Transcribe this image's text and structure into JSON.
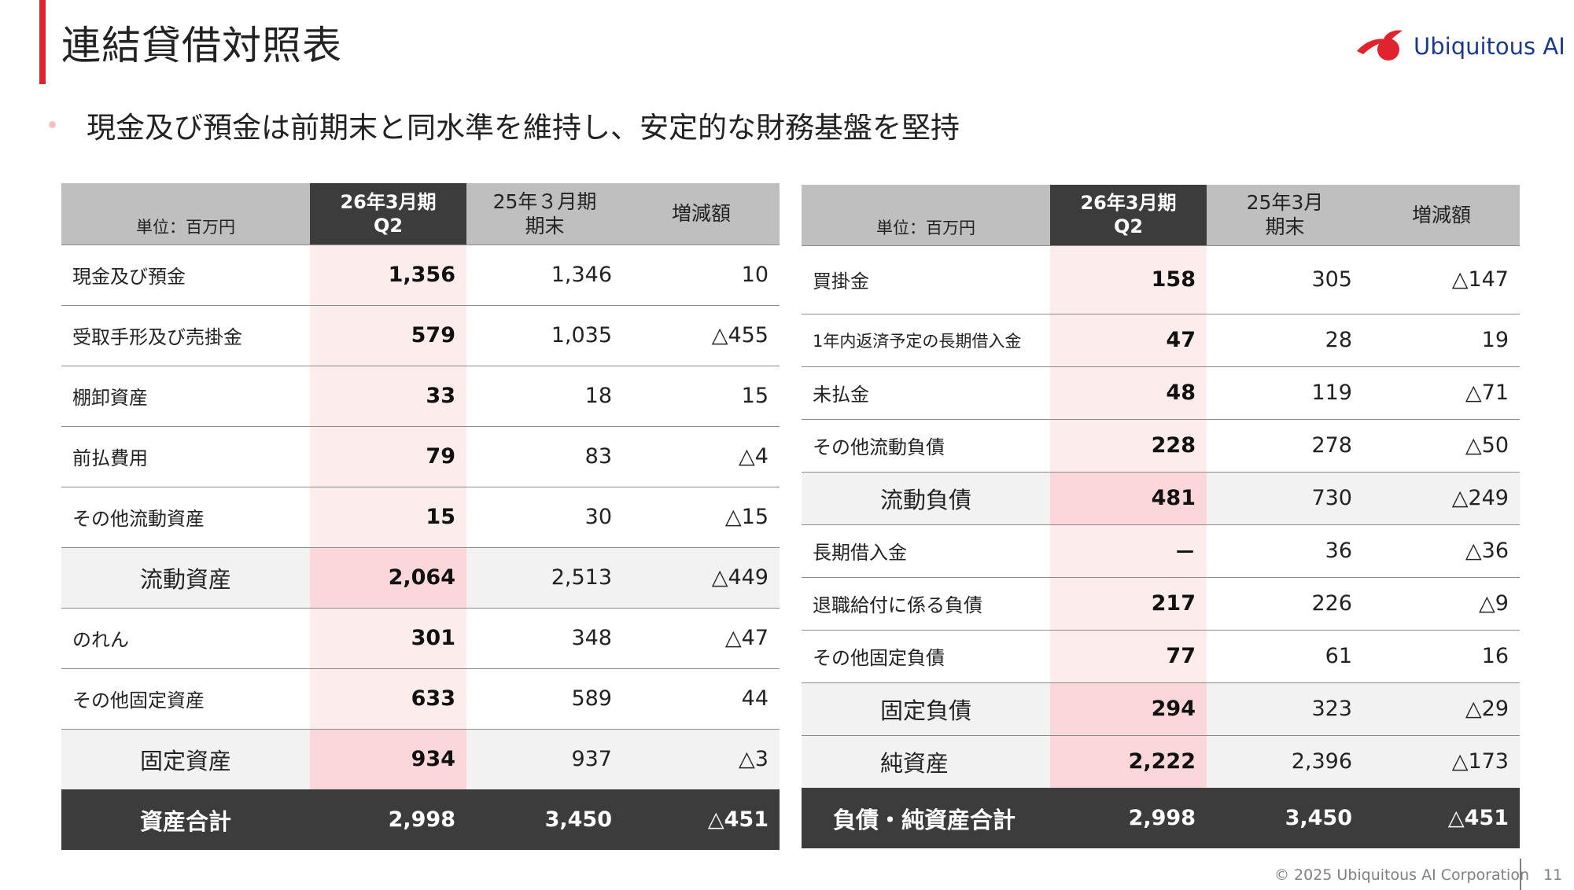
{
  "header": {
    "title": "連結貸借対照表",
    "logo_text": "Ubiquitous AI",
    "bullet": "現金及び預金は前期末と同水準を維持し、安定的な財務基盤を堅持"
  },
  "colors": {
    "accent": "#e0242f",
    "header_grey": "#bfbfbf",
    "dark": "#3c3c3c",
    "current_col": "#fcecec",
    "current_col_subtotal": "#fbd7da",
    "logo_blue": "#1b3a8f"
  },
  "assets_table": {
    "unit": "単位：百万円",
    "col_current": [
      "26年3月期",
      "Q2"
    ],
    "col_prev": [
      "25年３月期",
      "期末"
    ],
    "col_diff": "増減額",
    "rows": [
      {
        "label": "現金及び預金",
        "current": "1,356",
        "prev": "1,346",
        "diff": "10"
      },
      {
        "label": "受取手形及び売掛金",
        "current": "579",
        "prev": "1,035",
        "diff": "△455"
      },
      {
        "label": "棚卸資産",
        "current": "33",
        "prev": "18",
        "diff": "15"
      },
      {
        "label": "前払費用",
        "current": "79",
        "prev": "83",
        "diff": "△4"
      },
      {
        "label": "その他流動資産",
        "current": "15",
        "prev": "30",
        "diff": "△15"
      },
      {
        "label": "流動資産",
        "current": "2,064",
        "prev": "2,513",
        "diff": "△449"
      },
      {
        "label": "のれん",
        "current": "301",
        "prev": "348",
        "diff": "△47"
      },
      {
        "label": "その他固定資産",
        "current": "633",
        "prev": "589",
        "diff": "44"
      },
      {
        "label": "固定資産",
        "current": "934",
        "prev": "937",
        "diff": "△3"
      },
      {
        "label": "資産合計",
        "current": "2,998",
        "prev": "3,450",
        "diff": "△451"
      }
    ]
  },
  "liabilities_table": {
    "unit": "単位：百万円",
    "col_current": [
      "26年3月期",
      "Q2"
    ],
    "col_prev": [
      "25年3月",
      "期末"
    ],
    "col_diff": "増減額",
    "rows": [
      {
        "label": "買掛金",
        "current": "158",
        "prev": "305",
        "diff": "△147"
      },
      {
        "label": "1年内返済予定の長期借入金",
        "current": "47",
        "prev": "28",
        "diff": "19"
      },
      {
        "label": "未払金",
        "current": "48",
        "prev": "119",
        "diff": "△71"
      },
      {
        "label": "その他流動負債",
        "current": "228",
        "prev": "278",
        "diff": "△50"
      },
      {
        "label": "流動負債",
        "current": "481",
        "prev": "730",
        "diff": "△249"
      },
      {
        "label": "長期借入金",
        "current": "－",
        "prev": "36",
        "diff": "△36"
      },
      {
        "label": "退職給付に係る負債",
        "current": "217",
        "prev": "226",
        "diff": "△9"
      },
      {
        "label": "その他固定負債",
        "current": "77",
        "prev": "61",
        "diff": "16"
      },
      {
        "label": "固定負債",
        "current": "294",
        "prev": "323",
        "diff": "△29"
      },
      {
        "label": "純資産",
        "current": "2,222",
        "prev": "2,396",
        "diff": "△173"
      },
      {
        "label": "負債・純資産合計",
        "current": "2,998",
        "prev": "3,450",
        "diff": "△451"
      }
    ]
  },
  "footer": {
    "copyright": "© 2025 Ubiquitous AI Corporation",
    "page_number": "11"
  }
}
